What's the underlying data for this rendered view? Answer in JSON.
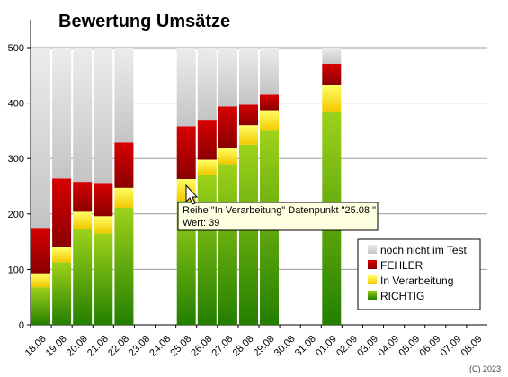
{
  "chart_data": {
    "type": "bar",
    "stacked": true,
    "title": "Bewertung Umsätze",
    "categories": [
      "18.08",
      "19.08",
      "20.08",
      "21.08",
      "22.08",
      "23.08",
      "24.08",
      "25.08",
      "26.08",
      "27.08",
      "28.08",
      "29.08",
      "30.08",
      "31.08",
      "01.09",
      "02.09",
      "03.09",
      "04.09",
      "05.09",
      "06.09",
      "07.09",
      "08.09"
    ],
    "series": [
      {
        "name": "RICHTIG",
        "color": "#88c000",
        "values": [
          68,
          113,
          173,
          165,
          211,
          0,
          0,
          224,
          270,
          290,
          325,
          350,
          0,
          0,
          385,
          0,
          0,
          0,
          0,
          0,
          0,
          0
        ]
      },
      {
        "name": "In Verarbeitung",
        "color": "#ffff00",
        "values": [
          25,
          27,
          31,
          31,
          36,
          0,
          0,
          39,
          28,
          29,
          35,
          37,
          0,
          0,
          48,
          0,
          0,
          0,
          0,
          0,
          0,
          0
        ]
      },
      {
        "name": "FEHLER",
        "color": "#cc0000",
        "values": [
          82,
          124,
          54,
          60,
          82,
          0,
          0,
          95,
          72,
          75,
          37,
          28,
          0,
          0,
          38,
          0,
          0,
          0,
          0,
          0,
          0,
          0
        ]
      },
      {
        "name": "noch nicht im Test",
        "color": "#cccccc",
        "values": [
          325,
          236,
          242,
          244,
          171,
          0,
          0,
          142,
          130,
          106,
          103,
          85,
          0,
          0,
          29,
          0,
          0,
          0,
          0,
          0,
          0,
          0
        ]
      }
    ],
    "ylim": [
      0,
      500
    ],
    "yticks": [
      0,
      100,
      200,
      300,
      400,
      500
    ],
    "grid": true,
    "legend_position": "bottom-right",
    "tooltip": {
      "line1": "Reihe \"In Verarbeitung\" Datenpunkt \"25.08 \"",
      "line2": "Wert: 39"
    },
    "copyright": "(C) 2023"
  }
}
